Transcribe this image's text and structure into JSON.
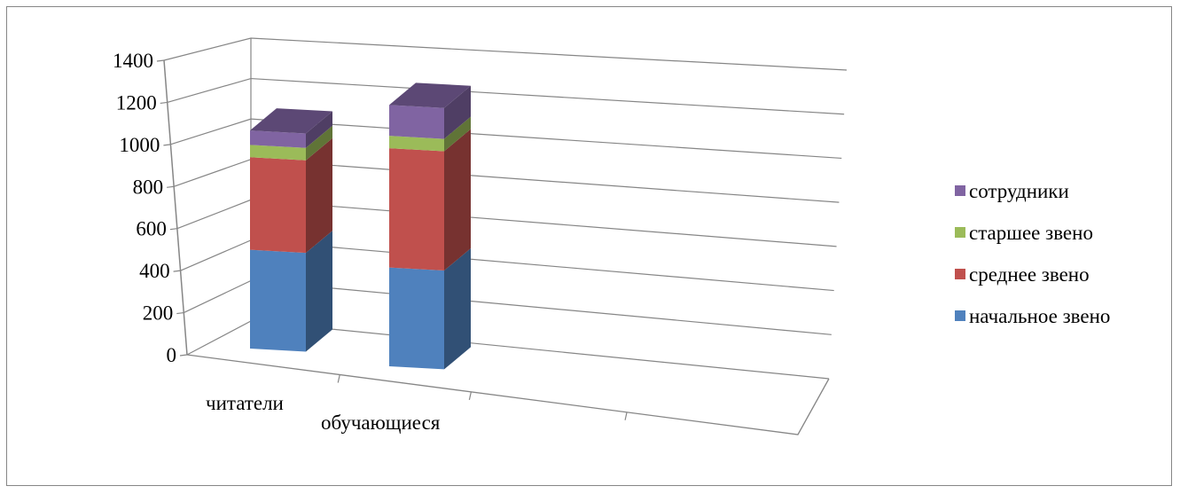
{
  "chart_data": {
    "type": "bar",
    "variant": "stacked-3d",
    "categories": [
      "читатели",
      "обучающиеся"
    ],
    "series": [
      {
        "name": "начальное звено",
        "values": [
          480,
          480
        ],
        "color": "#4F81BD"
      },
      {
        "name": "среднее звено",
        "values": [
          450,
          580
        ],
        "color": "#C0504D"
      },
      {
        "name": "старшее звено",
        "values": [
          60,
          60
        ],
        "color": "#9BBB59"
      },
      {
        "name": "сотрудники",
        "values": [
          70,
          150
        ],
        "color": "#8064A2"
      }
    ],
    "y_ticks": [
      "0",
      "200",
      "400",
      "600",
      "800",
      "1000",
      "1200",
      "1400"
    ],
    "ylim": [
      0,
      1400
    ],
    "grid": true,
    "legend_position": "right"
  }
}
